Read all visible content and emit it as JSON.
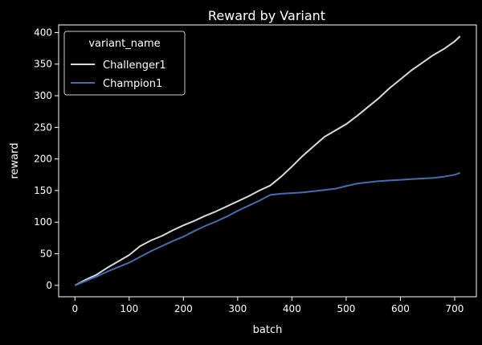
{
  "colors": {
    "background": "#000000",
    "foreground": "#ffffff",
    "challenger": "#d9d9d9",
    "champion": "#3f6fae"
  },
  "chart_data": {
    "type": "line",
    "title": "Reward by Variant",
    "xlabel": "batch",
    "ylabel": "reward",
    "xlim": [
      -30,
      740
    ],
    "ylim": [
      -18,
      412
    ],
    "xticks": [
      0,
      100,
      200,
      300,
      400,
      500,
      600,
      700
    ],
    "yticks": [
      0,
      50,
      100,
      150,
      200,
      250,
      300,
      350,
      400
    ],
    "grid": false,
    "legend": {
      "title": "variant_name",
      "position": "top-left"
    },
    "series": [
      {
        "name": "Challenger1",
        "color": "#d9d9d9",
        "x": [
          0,
          20,
          40,
          60,
          80,
          100,
          120,
          140,
          160,
          180,
          200,
          220,
          240,
          260,
          280,
          300,
          320,
          340,
          360,
          380,
          400,
          420,
          440,
          460,
          480,
          500,
          520,
          540,
          560,
          580,
          600,
          620,
          640,
          660,
          680,
          700,
          710
        ],
        "y": [
          0,
          9,
          17,
          28,
          38,
          48,
          62,
          71,
          78,
          87,
          95,
          102,
          110,
          117,
          125,
          133,
          141,
          150,
          158,
          172,
          188,
          205,
          220,
          235,
          245,
          255,
          268,
          282,
          296,
          312,
          326,
          340,
          352,
          364,
          374,
          386,
          394
        ]
      },
      {
        "name": "Champion1",
        "color": "#3f6fae",
        "x": [
          0,
          20,
          40,
          60,
          80,
          100,
          120,
          140,
          160,
          180,
          200,
          220,
          240,
          260,
          280,
          300,
          320,
          340,
          360,
          380,
          400,
          420,
          440,
          460,
          480,
          500,
          520,
          540,
          560,
          580,
          600,
          620,
          640,
          660,
          680,
          700,
          710
        ],
        "y": [
          0,
          7,
          14,
          22,
          29,
          36,
          45,
          54,
          62,
          70,
          77,
          86,
          94,
          101,
          109,
          118,
          126,
          134,
          143,
          145,
          146,
          147,
          149,
          151,
          153,
          157,
          161,
          163,
          165,
          166,
          167,
          168,
          169,
          170,
          172,
          175,
          178
        ]
      }
    ]
  }
}
